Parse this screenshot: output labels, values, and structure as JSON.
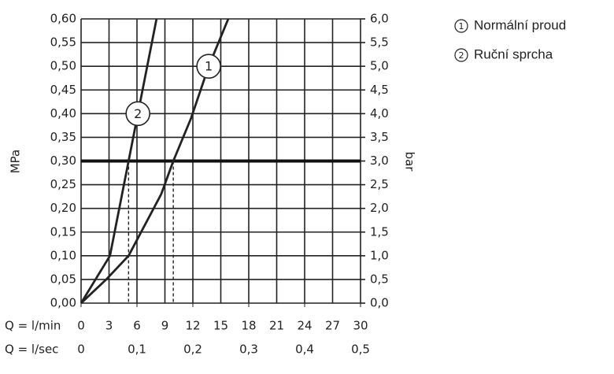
{
  "chart_data": {
    "type": "line",
    "y_label": "MPa",
    "y2_label": "bar",
    "x_label": "Q = l/min",
    "x2_label": "Q = l/sec",
    "xlim": [
      0,
      30
    ],
    "xticks": [
      0,
      3,
      6,
      9,
      12,
      15,
      18,
      21,
      24,
      27,
      30
    ],
    "x2lim": [
      0,
      0.5
    ],
    "x2ticks": [
      0,
      {
        "value": 0.1,
        "label": "0,1"
      },
      {
        "value": 0.2,
        "label": "0,2"
      },
      {
        "value": 0.3,
        "label": "0,3"
      },
      {
        "value": 0.4,
        "label": "0,4"
      },
      {
        "value": 0.5,
        "label": "0,5"
      }
    ],
    "ylim": [
      0,
      0.6
    ],
    "yticks": [
      {
        "value": 0,
        "label": "0,00"
      },
      {
        "value": 0.05,
        "label": "0,05"
      },
      {
        "value": 0.1,
        "label": "0,10"
      },
      {
        "value": 0.15,
        "label": "0,15"
      },
      {
        "value": 0.2,
        "label": "0,20"
      },
      {
        "value": 0.25,
        "label": "0,25"
      },
      {
        "value": 0.3,
        "label": "0,30"
      },
      {
        "value": 0.35,
        "label": "0,35"
      },
      {
        "value": 0.4,
        "label": "0,40"
      },
      {
        "value": 0.45,
        "label": "0,45"
      },
      {
        "value": 0.5,
        "label": "0,50"
      },
      {
        "value": 0.55,
        "label": "0,55"
      },
      {
        "value": 0.6,
        "label": "0,60"
      }
    ],
    "y2lim": [
      0,
      6
    ],
    "y2ticks": [
      {
        "value": 0,
        "label": "0,0"
      },
      {
        "value": 0.5,
        "label": "0,5"
      },
      {
        "value": 1,
        "label": "1,0"
      },
      {
        "value": 1.5,
        "label": "1,5"
      },
      {
        "value": 2,
        "label": "2,0"
      },
      {
        "value": 2.5,
        "label": "2,5"
      },
      {
        "value": 3,
        "label": "3,0"
      },
      {
        "value": 3.5,
        "label": "3,5"
      },
      {
        "value": 4,
        "label": "4,0"
      },
      {
        "value": 4.5,
        "label": "4,5"
      },
      {
        "value": 5,
        "label": "5,0"
      },
      {
        "value": 5.5,
        "label": "5,5"
      },
      {
        "value": 6,
        "label": "6,0"
      }
    ],
    "grid": true,
    "hline": 0.3,
    "series": [
      {
        "name": "Normální proud",
        "label": "1",
        "color": "#222222",
        "x": [
          0,
          2.7,
          5.1,
          8.6,
          9.9,
          11.8,
          13.7,
          15.8
        ],
        "values": [
          0,
          0.05,
          0.1,
          0.23,
          0.3,
          0.39,
          0.5,
          0.6
        ],
        "crossing_x": 9.9
      },
      {
        "name": "Ruční sprcha",
        "label": "2",
        "color": "#222222",
        "x": [
          0,
          3.1,
          5.1,
          6.1,
          8.1
        ],
        "values": [
          0,
          0.1,
          0.3,
          0.4,
          0.6
        ],
        "crossing_x": 5.1
      }
    ]
  }
}
